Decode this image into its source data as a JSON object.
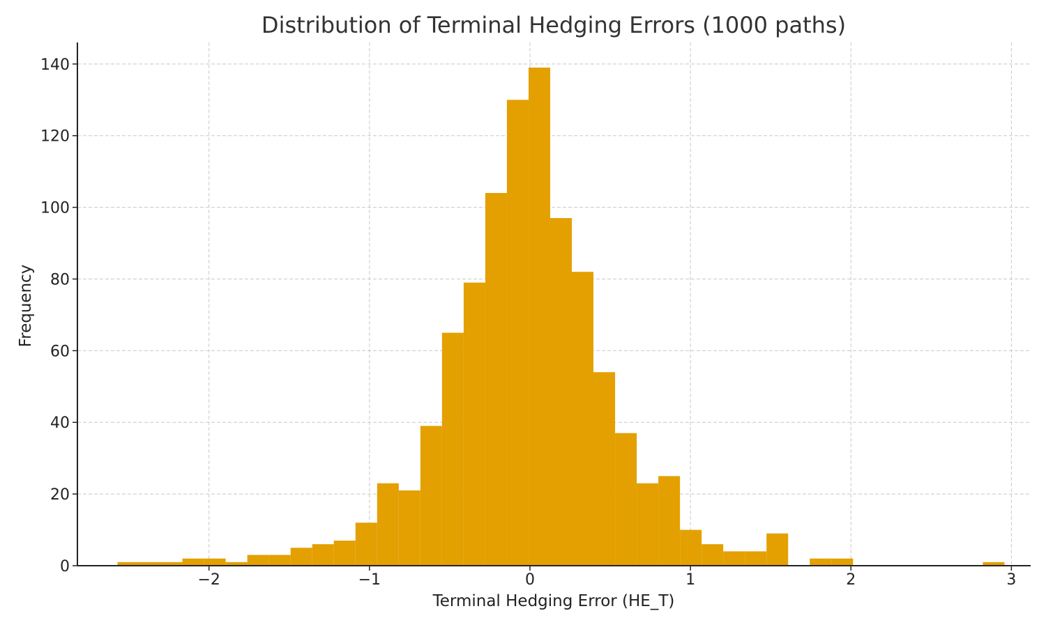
{
  "chart_data": {
    "type": "bar",
    "subtype": "histogram",
    "title": "Distribution of Terminal Hedging Errors (1000 paths)",
    "xlabel": "Terminal Hedging Error (HE_T)",
    "ylabel": "Frequency",
    "xlim": [
      -2.82,
      3.12
    ],
    "ylim": [
      0,
      146
    ],
    "xticks": [
      -2,
      -1,
      0,
      1,
      2,
      3
    ],
    "xtick_labels": [
      "−2",
      "−1",
      "0",
      "1",
      "2",
      "3"
    ],
    "yticks": [
      0,
      20,
      40,
      60,
      80,
      100,
      120,
      140
    ],
    "ytick_labels": [
      "0",
      "20",
      "40",
      "60",
      "80",
      "100",
      "120",
      "140"
    ],
    "grid": true,
    "bar_color": "#E3A000",
    "bin_start": -2.57,
    "bin_width": 0.1348,
    "counts": [
      1,
      1,
      1,
      2,
      2,
      1,
      3,
      3,
      5,
      6,
      7,
      12,
      23,
      21,
      39,
      65,
      79,
      104,
      130,
      139,
      97,
      82,
      54,
      37,
      23,
      25,
      10,
      6,
      4,
      4,
      9,
      0,
      2,
      2,
      0,
      0,
      0,
      0,
      0,
      0,
      1
    ]
  }
}
